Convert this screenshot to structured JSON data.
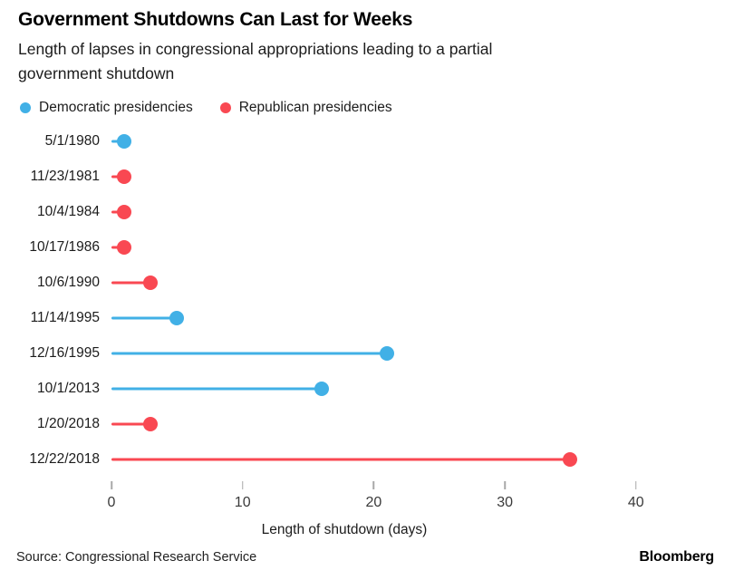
{
  "header": {
    "title": "Government Shutdowns Can Last for Weeks",
    "subtitle_line1": "Length of lapses in congressional appropriations leading to a partial",
    "subtitle_line2": "government shutdown"
  },
  "chart_data": {
    "type": "bar",
    "variant": "lollipop",
    "orientation": "horizontal",
    "title": "Government Shutdowns Can Last for Weeks",
    "subtitle": "Length of lapses in congressional appropriations leading to a partial government shutdown",
    "xlabel": "Length of shutdown (days)",
    "xticks": [
      0,
      10,
      20,
      30,
      40
    ],
    "xlim": [
      0,
      44
    ],
    "grid": false,
    "legend_position": "top-left",
    "legend": [
      {
        "label": "Democratic presidencies",
        "party": "Democratic"
      },
      {
        "label": "Republican presidencies",
        "party": "Republican"
      }
    ],
    "party_colors": {
      "Democratic": "#41b0e6",
      "Republican": "#f94852"
    },
    "categories": [
      "5/1/1980",
      "11/23/1981",
      "10/4/1984",
      "10/17/1986",
      "10/6/1990",
      "11/14/1995",
      "12/16/1995",
      "10/1/2013",
      "1/20/2018",
      "12/22/2018"
    ],
    "values": [
      1,
      1,
      1,
      1,
      3,
      5,
      21,
      16,
      3,
      35
    ],
    "rows": [
      {
        "date": "5/1/1980",
        "days": 1,
        "party": "Democratic"
      },
      {
        "date": "11/23/1981",
        "days": 1,
        "party": "Republican"
      },
      {
        "date": "10/4/1984",
        "days": 1,
        "party": "Republican"
      },
      {
        "date": "10/17/1986",
        "days": 1,
        "party": "Republican"
      },
      {
        "date": "10/6/1990",
        "days": 3,
        "party": "Republican"
      },
      {
        "date": "11/14/1995",
        "days": 5,
        "party": "Democratic"
      },
      {
        "date": "12/16/1995",
        "days": 21,
        "party": "Democratic"
      },
      {
        "date": "10/1/2013",
        "days": 16,
        "party": "Democratic"
      },
      {
        "date": "1/20/2018",
        "days": 3,
        "party": "Republican"
      },
      {
        "date": "12/22/2018",
        "days": 35,
        "party": "Republican"
      }
    ]
  },
  "footer": {
    "source": "Source: Congressional Research Service",
    "brand": "Bloomberg"
  }
}
